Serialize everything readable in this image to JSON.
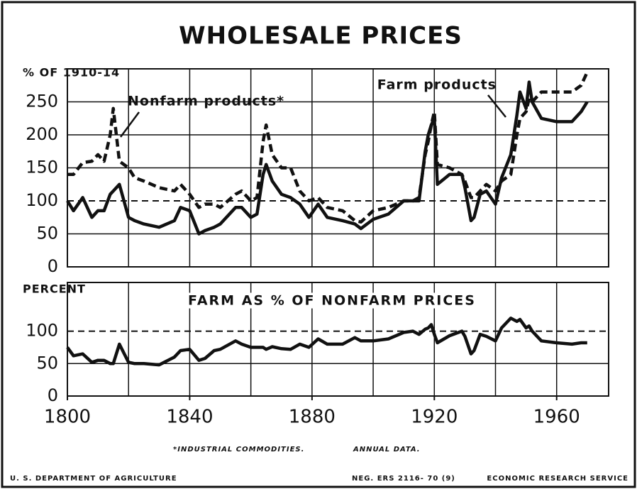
{
  "chart_data": [
    {
      "type": "line",
      "title": "WHOLESALE PRICES",
      "y_label": "% OF 1910-14",
      "x": [
        1800,
        1802,
        1805,
        1808,
        1810,
        1812,
        1814,
        1815,
        1817,
        1820,
        1822,
        1825,
        1830,
        1835,
        1837,
        1840,
        1843,
        1845,
        1848,
        1850,
        1855,
        1857,
        1860,
        1862,
        1864,
        1865,
        1867,
        1870,
        1873,
        1876,
        1879,
        1882,
        1885,
        1890,
        1894,
        1896,
        1900,
        1905,
        1910,
        1913,
        1915,
        1917,
        1918,
        1919,
        1920,
        1921,
        1925,
        1929,
        1930,
        1932,
        1933,
        1935,
        1937,
        1940,
        1942,
        1945,
        1947,
        1948,
        1950,
        1951,
        1952,
        1955,
        1960,
        1965,
        1968,
        1970
      ],
      "series": [
        {
          "name": "Nonfarm products*",
          "color": "#111111",
          "dash": true,
          "values": [
            140,
            140,
            158,
            160,
            170,
            160,
            200,
            240,
            160,
            150,
            135,
            130,
            120,
            115,
            125,
            110,
            90,
            95,
            95,
            90,
            110,
            115,
            100,
            105,
            190,
            215,
            170,
            150,
            150,
            115,
            100,
            105,
            90,
            85,
            70,
            68,
            85,
            90,
            100,
            100,
            105,
            170,
            190,
            215,
            235,
            155,
            150,
            140,
            130,
            105,
            105,
            115,
            125,
            115,
            130,
            140,
            200,
            225,
            235,
            255,
            250,
            265,
            265,
            265,
            275,
            295
          ]
        },
        {
          "name": "Farm products",
          "color": "#111111",
          "dash": false,
          "values": [
            100,
            85,
            105,
            75,
            85,
            85,
            110,
            115,
            125,
            75,
            70,
            65,
            60,
            70,
            90,
            85,
            50,
            55,
            60,
            65,
            90,
            90,
            75,
            80,
            140,
            155,
            130,
            110,
            105,
            95,
            75,
            95,
            75,
            70,
            65,
            58,
            72,
            80,
            100,
            100,
            100,
            175,
            200,
            215,
            225,
            125,
            140,
            140,
            120,
            70,
            75,
            110,
            115,
            95,
            135,
            170,
            230,
            265,
            240,
            280,
            250,
            225,
            220,
            220,
            235,
            250
          ]
        }
      ],
      "xlim": [
        1800,
        1977
      ],
      "xgrid": [
        1820,
        1840,
        1860,
        1880,
        1900,
        1920,
        1940,
        1960
      ],
      "ylim": [
        0,
        300
      ],
      "yticks": [
        0,
        50,
        100,
        150,
        200,
        250
      ],
      "reference_line": 100
    },
    {
      "type": "line",
      "title": "FARM AS % OF NONFARM PRICES",
      "y_label": "PERCENT",
      "x": [
        1800,
        1802,
        1805,
        1808,
        1810,
        1812,
        1814,
        1815,
        1817,
        1820,
        1822,
        1825,
        1830,
        1835,
        1837,
        1840,
        1843,
        1845,
        1848,
        1850,
        1855,
        1857,
        1860,
        1862,
        1864,
        1865,
        1867,
        1870,
        1873,
        1876,
        1879,
        1882,
        1885,
        1890,
        1894,
        1896,
        1900,
        1905,
        1910,
        1913,
        1915,
        1917,
        1918,
        1919,
        1920,
        1921,
        1925,
        1929,
        1930,
        1932,
        1933,
        1935,
        1937,
        1940,
        1942,
        1945,
        1947,
        1948,
        1950,
        1951,
        1952,
        1955,
        1960,
        1965,
        1968,
        1970
      ],
      "series": [
        {
          "color": "#111111",
          "dash": false,
          "values": [
            75,
            62,
            65,
            52,
            55,
            55,
            50,
            50,
            80,
            52,
            50,
            50,
            48,
            60,
            70,
            72,
            55,
            58,
            70,
            72,
            85,
            80,
            75,
            75,
            75,
            72,
            76,
            73,
            72,
            80,
            75,
            88,
            80,
            80,
            90,
            85,
            85,
            88,
            98,
            100,
            95,
            103,
            105,
            110,
            95,
            82,
            93,
            100,
            92,
            65,
            70,
            95,
            92,
            85,
            105,
            120,
            115,
            118,
            105,
            108,
            100,
            85,
            82,
            80,
            82,
            82
          ]
        }
      ],
      "xlim": [
        1800,
        1977
      ],
      "xticks": [
        1800,
        1840,
        1880,
        1920,
        1960
      ],
      "xgrid": [
        1820,
        1840,
        1860,
        1880,
        1900,
        1920,
        1940,
        1960
      ],
      "ylim": [
        0,
        175
      ],
      "yticks": [
        0,
        50,
        100
      ],
      "reference_line": 100
    }
  ],
  "footnotes": {
    "note": "*INDUSTRIAL COMMODITIES.",
    "data_note": "ANNUAL DATA.",
    "source": "U. S. DEPARTMENT OF AGRICULTURE",
    "negative": "NEG. ERS 2116- 70 (9)",
    "agency": "ECONOMIC RESEARCH SERVICE"
  }
}
